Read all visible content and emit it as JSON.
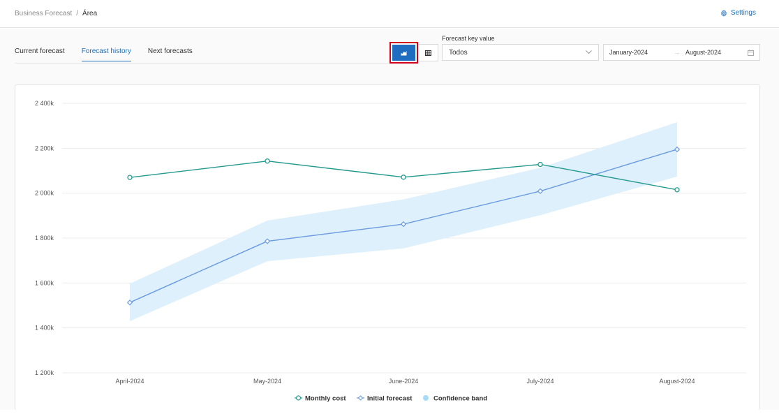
{
  "breadcrumb": {
    "parent": "Business Forecast",
    "separator": "/",
    "current": "Área"
  },
  "header": {
    "settings_label": "Settings",
    "settings_icon": "gear-icon"
  },
  "tabs": [
    {
      "label": "Current forecast",
      "active": false
    },
    {
      "label": "Forecast history",
      "active": true
    },
    {
      "label": "Next forecasts",
      "active": false
    }
  ],
  "view_toggle": {
    "chart_icon": "area-chart-icon",
    "table_icon": "table-icon",
    "selected": "chart"
  },
  "forecast_key": {
    "label": "Forecast key value",
    "value": "Todos"
  },
  "date_range": {
    "from": "January-2024",
    "to": "August-2024"
  },
  "colors": {
    "accent": "#1e6fb8",
    "monthly": "#23998e",
    "initial": "#6a9ae0",
    "band": "#ddf0fc",
    "highlight": "#d0021b"
  },
  "chart_data": {
    "type": "line",
    "categories": [
      "April-2024",
      "May-2024",
      "June-2024",
      "July-2024",
      "August-2024"
    ],
    "y_ticks": [
      "1 200k",
      "1 400k",
      "1 600k",
      "1 800k",
      "2 000k",
      "2 200k",
      "2 400k"
    ],
    "ylim": [
      1200000,
      2400000
    ],
    "series": [
      {
        "name": "Monthly cost",
        "values": [
          2070000,
          2143000,
          2071000,
          2128000,
          2015000
        ]
      },
      {
        "name": "Initial forecast",
        "values": [
          1513000,
          1786000,
          1862000,
          2009000,
          2195000
        ]
      }
    ],
    "band": {
      "name": "Confidence band",
      "upper": [
        1597000,
        1878000,
        1972000,
        2113000,
        2316000
      ],
      "lower": [
        1430000,
        1697000,
        1754000,
        1902000,
        2074000
      ]
    },
    "grid": true,
    "legend_position": "bottom-center"
  }
}
